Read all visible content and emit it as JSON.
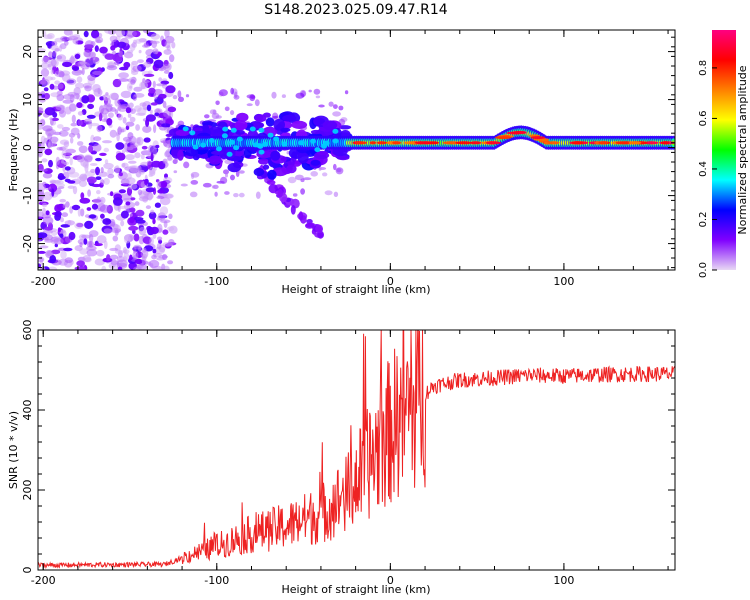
{
  "figure_title": "S148.2023.025.09.47.R14",
  "chart_data": [
    {
      "type": "heatmap",
      "xlabel": "Height of straight line (km)",
      "ylabel": "Frequency (Hz)",
      "xlim": [
        -203,
        164
      ],
      "ylim": [
        -25.5,
        24.5
      ],
      "x_ticks": [
        -200,
        -100,
        0,
        100
      ],
      "y_ticks": [
        -20,
        -10,
        0,
        10,
        20
      ],
      "colorbar": {
        "label": "Normalized spectral amplitude",
        "range": [
          0.0,
          0.95
        ],
        "ticks": [
          0.0,
          0.2,
          0.4,
          0.6,
          0.8
        ],
        "colormap": [
          "#e8d8f4",
          "#8000ff",
          "#0000ff",
          "#00ffff",
          "#00ff00",
          "#ffff00",
          "#ff8000",
          "#ff0000",
          "#ff0080"
        ]
      },
      "features": {
        "noise_region_x": [
          -203,
          -125
        ],
        "signal_start_x": -125,
        "signal_center_freq_hz": 1,
        "spread_region_x": [
          -125,
          -25
        ],
        "descending_streak": {
          "x": [
            -75,
            -40
          ],
          "freq_hz": [
            -5,
            -18
          ]
        }
      }
    },
    {
      "type": "line",
      "xlabel": "Height of straight line (km)",
      "ylabel": "SNR (10 * v/v)",
      "xlim": [
        -203,
        164
      ],
      "ylim": [
        0,
        600
      ],
      "x_ticks": [
        -200,
        -100,
        0,
        100
      ],
      "y_ticks": [
        0,
        200,
        400,
        600
      ],
      "color": "#ee2222",
      "series": [
        {
          "envelope_x": [
            -203,
            -130,
            -120,
            -100,
            -80,
            -60,
            -40,
            -25,
            -15,
            -5,
            5,
            15,
            25,
            40,
            60,
            80,
            100,
            120,
            140,
            164
          ],
          "envelope_y": [
            12,
            14,
            30,
            60,
            90,
            110,
            140,
            190,
            250,
            320,
            380,
            420,
            460,
            475,
            480,
            487,
            485,
            488,
            490,
            490
          ]
        }
      ]
    }
  ]
}
